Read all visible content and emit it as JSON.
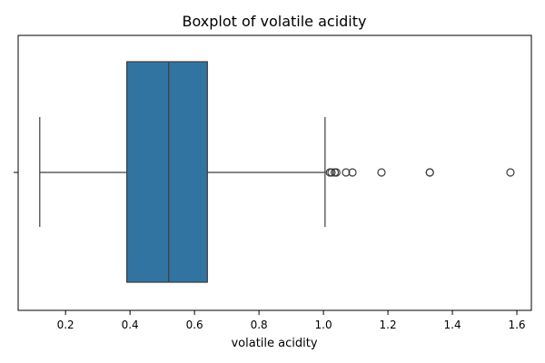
{
  "chart_data": {
    "type": "boxplot",
    "title": "Boxplot of volatile acidity",
    "xlabel": "volatile acidity",
    "ylabel": "",
    "xlim": [
      0.053,
      1.645
    ],
    "xticks": [
      0.2,
      0.4,
      0.6,
      0.8,
      1.0,
      1.2,
      1.4,
      1.6
    ],
    "xtick_labels": [
      "0.2",
      "0.4",
      "0.6",
      "0.8",
      "1.0",
      "1.2",
      "1.4",
      "1.6"
    ],
    "grid": false,
    "box": {
      "whisker_low": 0.12,
      "q1": 0.39,
      "median": 0.52,
      "q3": 0.64,
      "whisker_high": 1.005
    },
    "outliers": [
      1.02,
      1.025,
      1.035,
      1.04,
      1.07,
      1.09,
      1.18,
      1.33,
      1.33,
      1.58
    ],
    "colors": {
      "box_fill": "#3274a1",
      "line": "#3d3d3d",
      "axis": "#000000"
    }
  }
}
